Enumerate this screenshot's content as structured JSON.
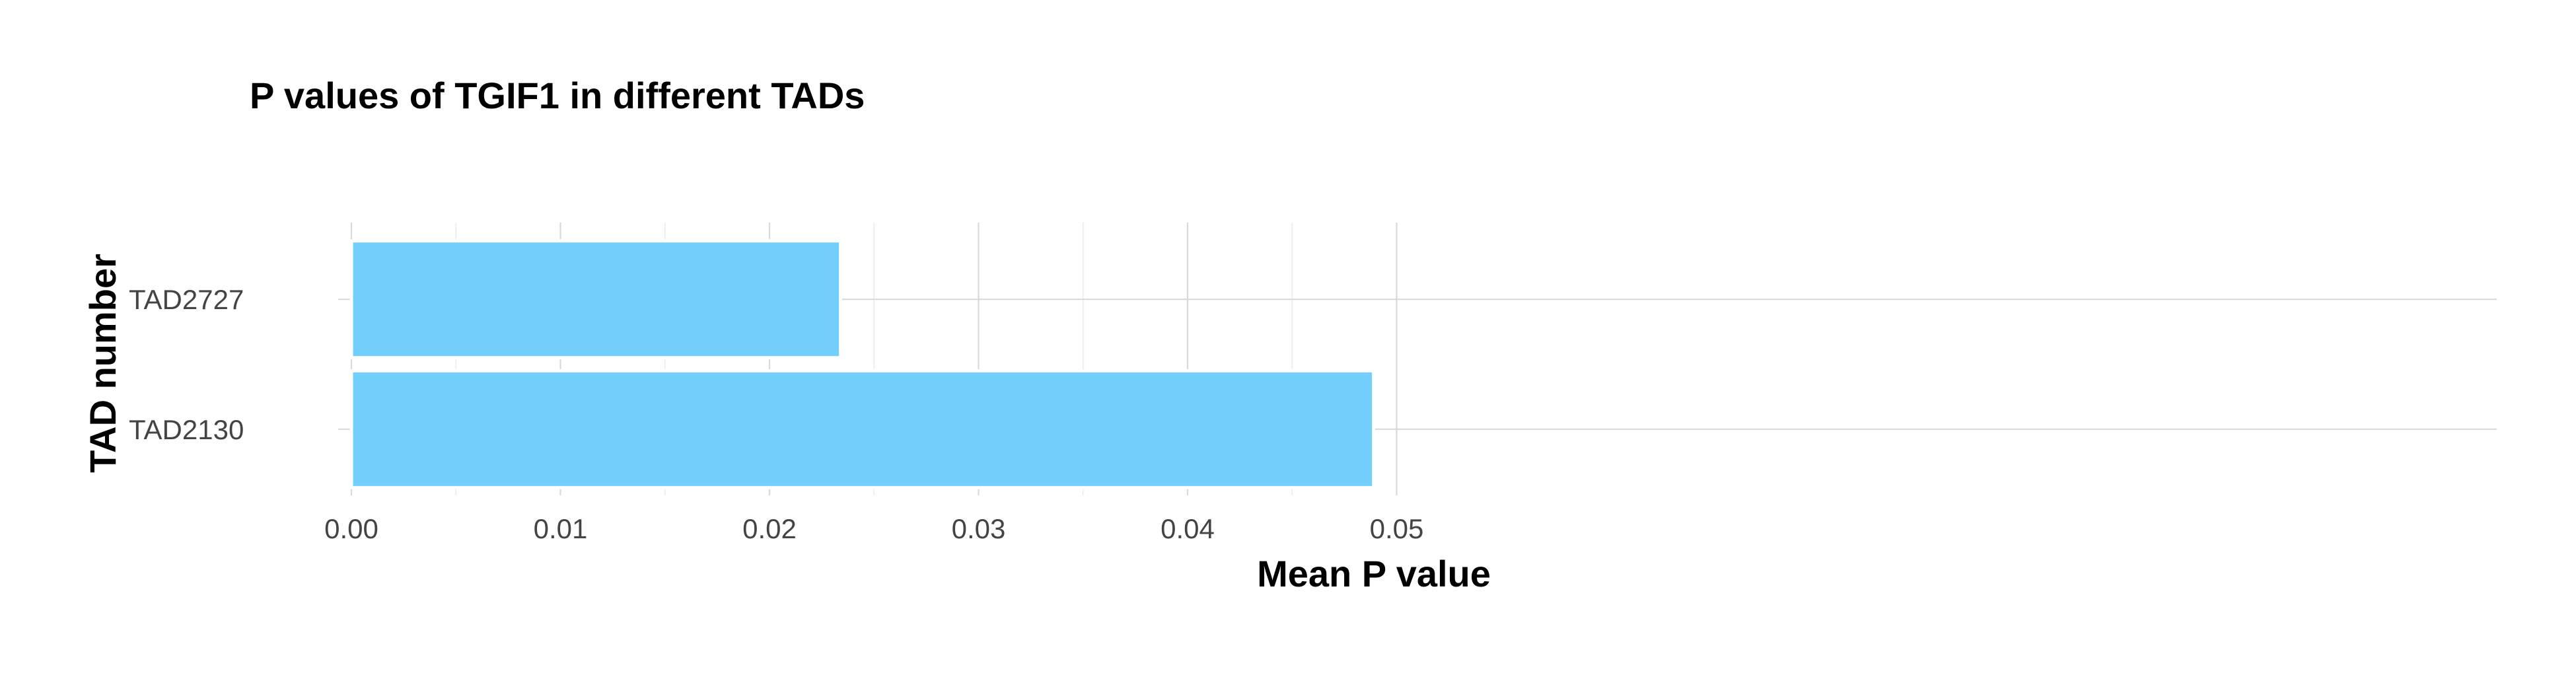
{
  "chart_data": {
    "type": "bar",
    "orientation": "horizontal",
    "title": "P values of TGIF1 in different TADs",
    "xlabel": "Mean P value",
    "ylabel": "TAD number",
    "categories": [
      "TAD2727",
      "TAD2130"
    ],
    "values": [
      0.0234,
      0.0489
    ],
    "xlim": [
      0,
      0.051
    ],
    "x_ticks": [
      0,
      0.01,
      0.02,
      0.03,
      0.04,
      0.05
    ],
    "x_tick_labels": [
      "0.00",
      "0.01",
      "0.02",
      "0.03",
      "0.04",
      "0.05"
    ],
    "grid": true,
    "legend": "none",
    "bar_color": "#73cffb"
  }
}
